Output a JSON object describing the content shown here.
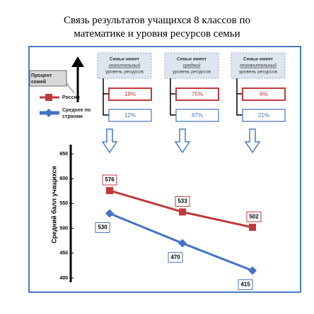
{
  "chart_data": {
    "type": "line",
    "title": "Связь результатов учащихся 8 классов по математике и уровня ресурсов семьи",
    "y_label": "Средний балл учащихся",
    "column_headers": [
      [
        "Семьи имеет",
        "значительный",
        "уровень ресурсов"
      ],
      [
        "Семьи имеет",
        "средний",
        "уровень ресурсов"
      ],
      [
        "Семьи имеет",
        "незначительный",
        "уровень ресурсов"
      ]
    ],
    "share_label": "Процент семей",
    "series": [
      {
        "name": "Россия",
        "color": "#c0393b",
        "values": [
          576,
          533,
          502
        ],
        "shares": [
          19,
          75,
          6
        ],
        "share_labels": [
          "19%",
          "75%",
          "6%"
        ]
      },
      {
        "name": "Среднее по странам",
        "color": "#4472c4",
        "values": [
          530,
          470,
          415
        ],
        "shares": [
          12,
          67,
          21
        ],
        "share_labels": [
          "12%",
          "67%",
          "21%"
        ]
      }
    ],
    "ylim": [
      400,
      650
    ],
    "yticks": [
      400,
      450,
      500,
      550,
      600,
      650
    ]
  }
}
